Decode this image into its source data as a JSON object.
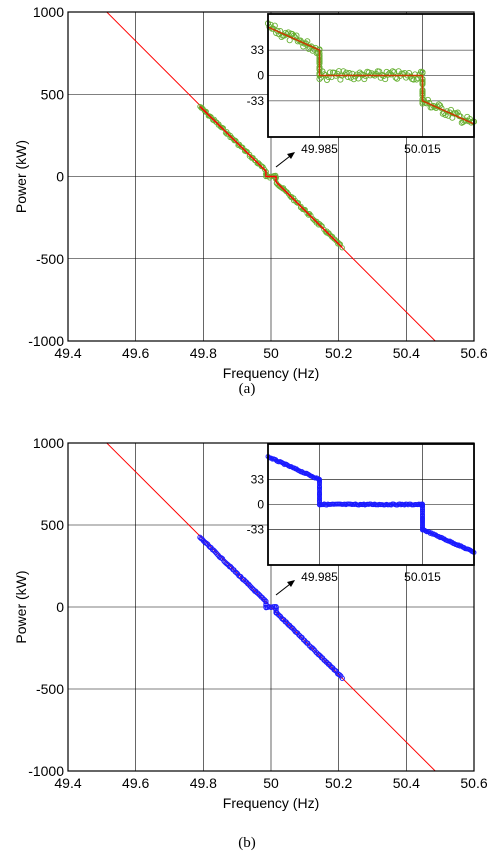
{
  "chart_data": [
    {
      "panel": "a",
      "type": "scatter",
      "caption": "(a)",
      "xlabel": "Frequency (Hz)",
      "ylabel": "Power (kW)",
      "xlim": [
        49.4,
        50.6
      ],
      "ylim": [
        -1000,
        1000
      ],
      "xticks": [
        "49.4",
        "49.6",
        "49.8",
        "50",
        "50.2",
        "50.4",
        "50.6"
      ],
      "yticks": [
        "1000",
        "500",
        "0",
        "-500",
        "-1000"
      ],
      "grid": true,
      "series": [
        {
          "style": "line",
          "color": "#ff0000",
          "x": [
            49.4,
            49.5,
            50.5,
            50.6
          ],
          "y": [
            1030,
            1030,
            -1030,
            -1030
          ]
        },
        {
          "style": "markers",
          "color": "#66b032",
          "x": [
            49.79,
            49.985,
            49.985,
            50.015,
            50.015,
            50.21
          ],
          "y": [
            425,
            33,
            0,
            0,
            -33,
            -430
          ]
        },
        {
          "style": "line",
          "color": "#ff0000",
          "x": [
            49.79,
            49.985,
            49.985,
            50.015,
            50.015,
            50.21
          ],
          "y": [
            425,
            33,
            0,
            0,
            -33,
            -430
          ]
        }
      ],
      "inset": {
        "xticks": [
          "49.985",
          "50.015"
        ],
        "yticks": [
          "33",
          "0",
          "-33"
        ],
        "xlim": [
          49.97,
          50.03
        ],
        "ylim": [
          -80,
          80
        ],
        "has_noise": true,
        "points": {
          "x": [
            49.97,
            49.985,
            49.985,
            50.015,
            50.015,
            50.03
          ],
          "y": [
            63,
            33,
            0,
            0,
            -33,
            -63
          ]
        },
        "marker_color": "#66b032",
        "line_color": "#c83c00"
      }
    },
    {
      "panel": "b",
      "type": "scatter",
      "caption": "(b)",
      "xlabel": "Frequency (Hz)",
      "ylabel": "Power (kW)",
      "xlim": [
        49.4,
        50.6
      ],
      "ylim": [
        -1000,
        1000
      ],
      "xticks": [
        "49.4",
        "49.6",
        "49.8",
        "50",
        "50.2",
        "50.4",
        "50.6"
      ],
      "yticks": [
        "1000",
        "500",
        "0",
        "-500",
        "-1000"
      ],
      "grid": true,
      "series": [
        {
          "style": "line",
          "color": "#ff0000",
          "x": [
            49.4,
            49.5,
            50.5,
            50.6
          ],
          "y": [
            1030,
            1030,
            -1030,
            -1030
          ]
        },
        {
          "style": "markers",
          "color": "#1a1aff",
          "x": [
            49.79,
            49.985,
            49.985,
            50.015,
            50.015,
            50.21
          ],
          "y": [
            425,
            33,
            0,
            0,
            -33,
            -430
          ]
        }
      ],
      "inset": {
        "xticks": [
          "49.985",
          "50.015"
        ],
        "yticks": [
          "33",
          "0",
          "-33"
        ],
        "xlim": [
          49.97,
          50.03
        ],
        "ylim": [
          -80,
          80
        ],
        "has_noise": false,
        "points": {
          "x": [
            49.97,
            49.985,
            49.985,
            50.015,
            50.015,
            50.03
          ],
          "y": [
            63,
            33,
            0,
            0,
            -33,
            -63
          ]
        },
        "marker_color": "#1a1aff",
        "line_color": "#1a1aff"
      }
    }
  ]
}
